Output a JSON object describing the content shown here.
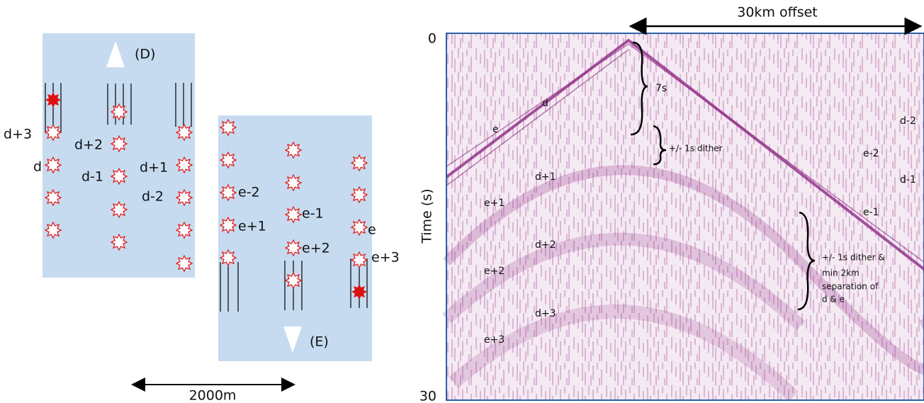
{
  "left_panel": {
    "source_d": "(D)",
    "source_e": "(E)",
    "labels_d": [
      "d+3",
      "d+2",
      "d",
      "d-1",
      "d+1",
      "d-2"
    ],
    "labels_e": [
      "e-2",
      "e-1",
      "e+1",
      "e+2",
      "e",
      "e+3"
    ],
    "scale": "2000m"
  },
  "right_panel": {
    "offset": "30km offset",
    "y_top": "0",
    "y_bottom": "30",
    "y_axis": "Time (s)",
    "brace_7s": "7s",
    "brace_dither": "+/- 1s dither",
    "brace_separation": [
      "+/- 1s dither &",
      "min 2km",
      "separation of",
      "d & e"
    ],
    "events_left": [
      "d",
      "e",
      "d+1",
      "e+1",
      "d+2",
      "e+2",
      "d+3",
      "e+3"
    ],
    "events_right": [
      "d-2",
      "e-2",
      "d-1",
      "e-1"
    ]
  }
}
